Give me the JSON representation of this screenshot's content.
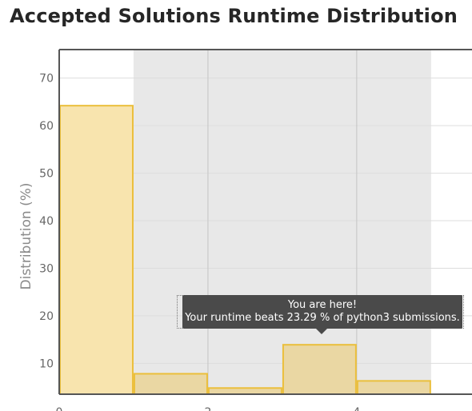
{
  "title": "Accepted Solutions Runtime Distribution",
  "chart_data": {
    "type": "bar",
    "title": "Accepted Solutions Runtime Distribution",
    "xlabel": "",
    "ylabel": "Distribution (%)",
    "bins": [
      {
        "start": 0,
        "end": 1,
        "value": 64.2
      },
      {
        "start": 1,
        "end": 2,
        "value": 7.8
      },
      {
        "start": 2,
        "end": 3,
        "value": 4.8
      },
      {
        "start": 3,
        "end": 4,
        "value": 13.9
      },
      {
        "start": 4,
        "end": 5,
        "value": 6.3
      }
    ],
    "highlight_range": [
      1,
      5
    ],
    "user_bin_index": 3,
    "x_ticks": [
      0,
      2,
      4
    ],
    "y_ticks": [
      10,
      20,
      30,
      40,
      50,
      60,
      70
    ],
    "xlim": [
      0,
      5.55
    ],
    "ylim": [
      3.5,
      76
    ],
    "grid": true,
    "colors": {
      "bar_fill": "#f8e4ae",
      "bar_fill_highlight": "#ead7a3",
      "bar_stroke": "#ebbf3c",
      "highlight_band": "#e8e8e8",
      "grid": "#dddddd"
    }
  },
  "tooltip": {
    "line1": "You are here!",
    "line2": "Your runtime beats 23.29 % of python3 submissions."
  }
}
